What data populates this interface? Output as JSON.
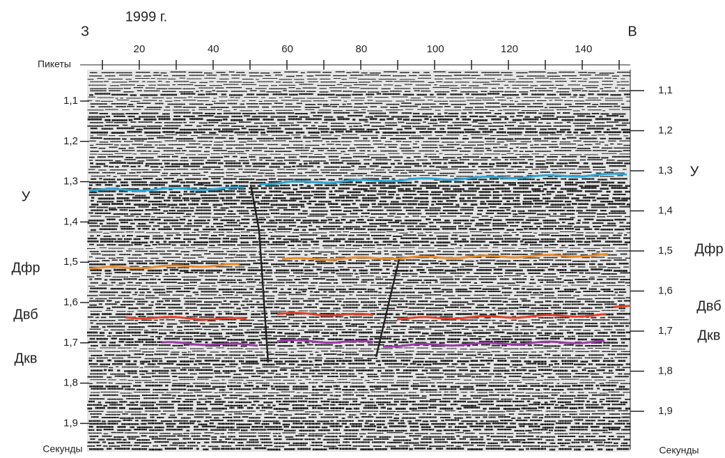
{
  "header": {
    "title": "1999 г.",
    "west": "З",
    "east": "В"
  },
  "top_axis": {
    "label": "Пикеты",
    "ticks": [
      "20",
      "40",
      "60",
      "80",
      "100",
      "120",
      "140"
    ]
  },
  "left_axis": {
    "label": "Секунды",
    "ticks": [
      "1,1",
      "1,2",
      "1,3",
      "1,4",
      "1,5",
      "1,6",
      "1,7",
      "1,8",
      "1,9"
    ],
    "horizons": [
      "У",
      "Дфр",
      "Двб",
      "Дкв"
    ]
  },
  "right_axis": {
    "label": "Секунды",
    "ticks": [
      "1,1",
      "1,2",
      "1,3",
      "1,4",
      "1,5",
      "1,6",
      "1,7",
      "1,8",
      "1,9"
    ],
    "horizons": [
      "У",
      "Дфр",
      "Двб",
      "Дкв"
    ]
  }
}
